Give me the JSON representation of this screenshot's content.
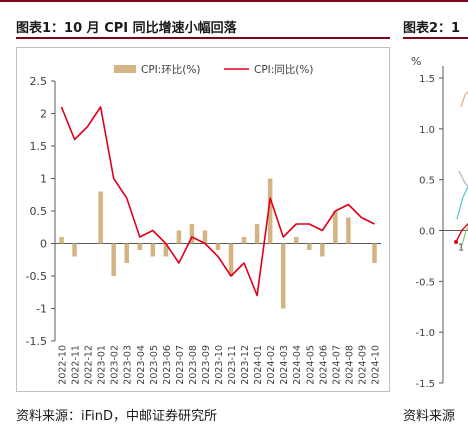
{
  "figure1": {
    "title": "图表1：10 月 CPI 同比增速小幅回落",
    "source": "资料来源：iFinD，中邮证券研究所"
  },
  "figure2": {
    "title_visible": "图表2：1",
    "source_visible": "资料来源",
    "y_unit": "%",
    "y_ticks": [
      "1.5",
      "1.0",
      "0.5",
      "0.0",
      "-0.5",
      "-1.0",
      "-1.5"
    ],
    "x_tick_visible": "1"
  },
  "chart_data": {
    "type": "bar",
    "title": "",
    "xlabel": "",
    "ylabel": "",
    "ylim": [
      -1.5,
      2.5
    ],
    "yticks": [
      2.5,
      2,
      1.5,
      1,
      0.5,
      0,
      -0.5,
      -1,
      -1.5
    ],
    "grid": false,
    "legend_position": "top",
    "categories": [
      "2022-10",
      "2022-11",
      "2022-12",
      "2023-01",
      "2023-02",
      "2023-03",
      "2023-04",
      "2023-05",
      "2023-06",
      "2023-07",
      "2023-08",
      "2023-09",
      "2023-10",
      "2023-11",
      "2023-12",
      "2024-01",
      "2024-02",
      "2024-03",
      "2024-04",
      "2024-05",
      "2024-06",
      "2024-07",
      "2024-08",
      "2024-09",
      "2024-10"
    ],
    "series": [
      {
        "name": "CPI:环比(%)",
        "kind": "bar",
        "color": "#d4b483",
        "values": [
          0.1,
          -0.2,
          0.0,
          0.8,
          -0.5,
          -0.3,
          -0.1,
          -0.2,
          -0.2,
          0.2,
          0.3,
          0.2,
          -0.1,
          -0.5,
          0.1,
          0.3,
          1.0,
          -1.0,
          0.1,
          -0.1,
          -0.2,
          0.5,
          0.4,
          0.0,
          -0.3
        ]
      },
      {
        "name": "CPI:同比(%)",
        "kind": "line",
        "color": "#e0001a",
        "values": [
          2.1,
          1.6,
          1.8,
          2.1,
          1.0,
          0.7,
          0.1,
          0.2,
          0.0,
          -0.3,
          0.1,
          0.0,
          -0.2,
          -0.5,
          -0.3,
          -0.8,
          0.7,
          0.1,
          0.3,
          0.3,
          0.2,
          0.5,
          0.6,
          0.4,
          0.3
        ]
      }
    ],
    "x_tick_labels": [
      "2022-10",
      "2022-11",
      "2022-12",
      "2023-01",
      "2023-02",
      "2023-03",
      "2023-04",
      "2023-05",
      "2023-06",
      "2023-07",
      "2023-08",
      "2023-09",
      "2023-10",
      "2023-11",
      "2023-12",
      "2024-01",
      "2024-02",
      "2024-03",
      "2024-04",
      "2024-05",
      "2024-06",
      "2024-07",
      "2024-08",
      "2024-09",
      "2024-10"
    ]
  }
}
